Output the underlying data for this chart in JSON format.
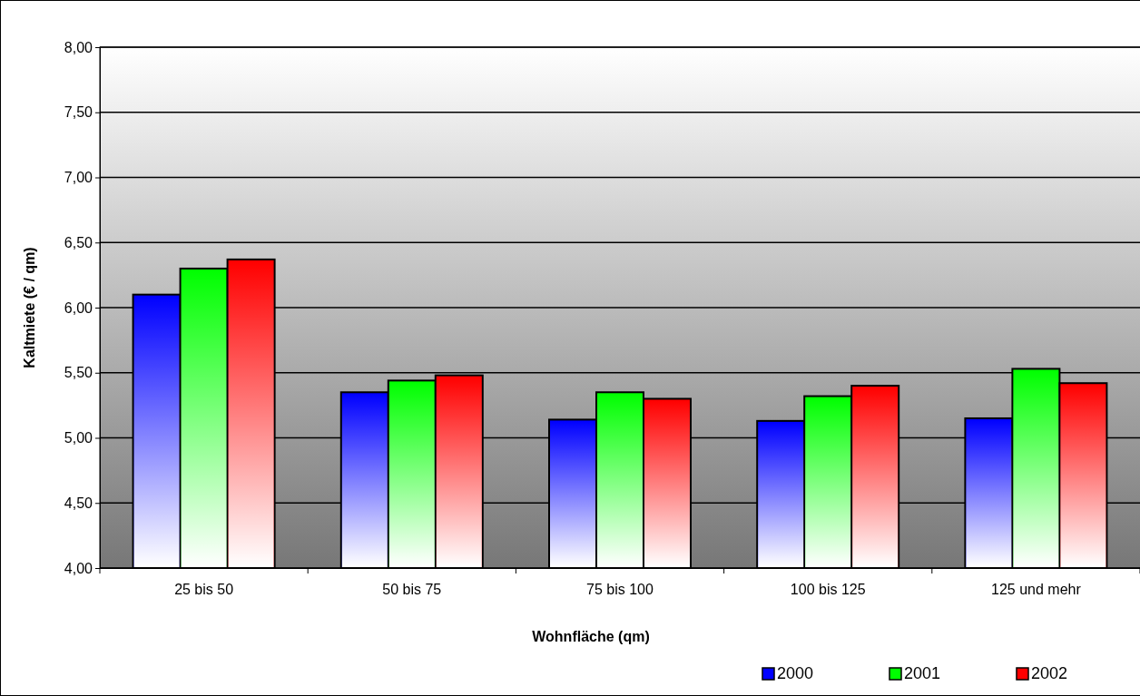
{
  "chart_data": {
    "type": "bar",
    "xlabel": "Wohnfläche (qm)",
    "ylabel": "Kaltmiete (€ / qm)",
    "categories": [
      "25 bis 50",
      "50 bis 75",
      "75 bis 100",
      "100 bis 125",
      "125 und mehr"
    ],
    "series": [
      {
        "name": "2000",
        "color": "#0000ff",
        "values": [
          6.1,
          5.35,
          5.14,
          5.13,
          5.15
        ]
      },
      {
        "name": "2001",
        "color": "#00ff00",
        "values": [
          6.3,
          5.44,
          5.35,
          5.32,
          5.53
        ]
      },
      {
        "name": "2002",
        "color": "#ff0000",
        "values": [
          6.37,
          5.48,
          5.3,
          5.4,
          5.42
        ]
      }
    ],
    "ylim": [
      4,
      8
    ],
    "yticks": [
      {
        "value": 4,
        "label": "4,00"
      },
      {
        "value": 4.5,
        "label": "4,50"
      },
      {
        "value": 5,
        "label": "5,00"
      },
      {
        "value": 5.5,
        "label": "5,50"
      },
      {
        "value": 6,
        "label": "6,00"
      },
      {
        "value": 6.5,
        "label": "6,50"
      },
      {
        "value": 7,
        "label": "7,00"
      },
      {
        "value": 7.5,
        "label": "7,50"
      },
      {
        "value": 8,
        "label": "8,00"
      }
    ],
    "grid": "y",
    "legend": "bottom right"
  }
}
